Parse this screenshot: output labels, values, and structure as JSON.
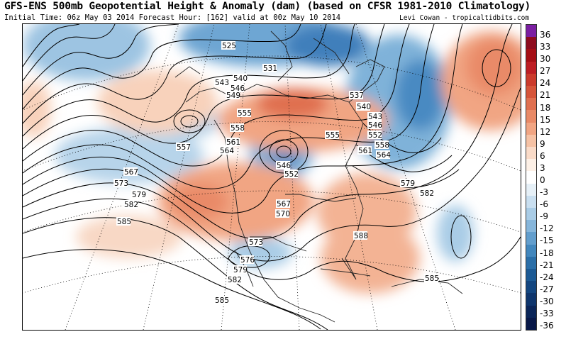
{
  "header": {
    "title": "GFS-ENS 500mb Geopotential Height & Anomaly (dam) (based on CFSR 1981-2010 Climatology)",
    "subtitle": "Initial Time: 06z May 03 2014 Forecast Hour: [162] valid at 00z May 10 2014",
    "credit": "Levi Cowan - tropicaltidbits.com"
  },
  "colorbar": {
    "ticks": [
      "36",
      "33",
      "30",
      "27",
      "24",
      "21",
      "18",
      "15",
      "12",
      "9",
      "6",
      "3",
      "0",
      "-3",
      "-6",
      "-9",
      "-12",
      "-15",
      "-18",
      "-21",
      "-24",
      "-27",
      "-30",
      "-33",
      "-36"
    ],
    "colors": [
      "#7b1fa2",
      "#8e0c1e",
      "#a50f15",
      "#bd1e24",
      "#cb3b2c",
      "#d6553a",
      "#e07050",
      "#e98a67",
      "#f1a583",
      "#f6c2a5",
      "#fadbc8",
      "#fdf0e6",
      "#ffffff",
      "#e6f0f7",
      "#c9dff0",
      "#a9cce6",
      "#86b6db",
      "#629ecd",
      "#4287bd",
      "#2b6fa8",
      "#1c5a94",
      "#134680",
      "#0e356c",
      "#0a2558",
      "#081848"
    ]
  },
  "map": {
    "contour_labels": [
      "525",
      "537",
      "540",
      "543",
      "546",
      "549",
      "555",
      "557",
      "558",
      "561",
      "564",
      "567",
      "570",
      "573",
      "576",
      "579",
      "582",
      "585",
      "588",
      "531",
      "552"
    ],
    "legend_items": [
      {
        "text": "525"
      },
      {
        "text": "531"
      },
      {
        "text": "540"
      },
      {
        "text": "543"
      },
      {
        "text": "546"
      },
      {
        "text": "549"
      },
      {
        "text": "555"
      },
      {
        "text": "558"
      },
      {
        "text": "561"
      },
      {
        "text": "564"
      },
      {
        "text": "557"
      },
      {
        "text": "567"
      },
      {
        "text": "573"
      },
      {
        "text": "579"
      },
      {
        "text": "582"
      },
      {
        "text": "585"
      },
      {
        "text": "546"
      },
      {
        "text": "552"
      },
      {
        "text": "567"
      },
      {
        "text": "570"
      },
      {
        "text": "573"
      },
      {
        "text": "576"
      },
      {
        "text": "579"
      },
      {
        "text": "582"
      },
      {
        "text": "585"
      },
      {
        "text": "588"
      },
      {
        "text": "537"
      },
      {
        "text": "540"
      },
      {
        "text": "543"
      },
      {
        "text": "546"
      },
      {
        "text": "552"
      },
      {
        "text": "555"
      },
      {
        "text": "558"
      },
      {
        "text": "561"
      },
      {
        "text": "564"
      },
      {
        "text": "579"
      },
      {
        "text": "582"
      },
      {
        "text": "585"
      }
    ]
  }
}
